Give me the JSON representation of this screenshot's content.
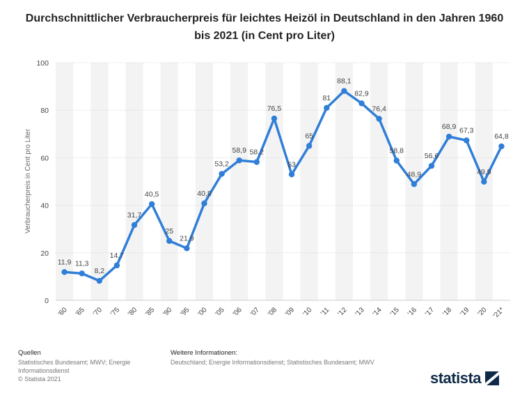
{
  "title": "Durchschnittlicher Verbraucherpreis für leichtes Heizöl in Deutschland in den Jahren 1960 bis 2021 (in Cent pro Liter)",
  "chart_data": {
    "type": "line",
    "title": "Durchschnittlicher Verbraucherpreis für leichtes Heizöl in Deutschland in den Jahren 1960 bis 2021 (in Cent pro Liter)",
    "xlabel": "",
    "ylabel": "Verbraucherpreis in Cent pro Liter",
    "categories": [
      "'60",
      "'65",
      "'70",
      "'75",
      "'80",
      "'85",
      "'90",
      "'95",
      "'00",
      "'05",
      "'06",
      "'07",
      "'08",
      "'09",
      "'10",
      "'11",
      "'12",
      "'13",
      "'14",
      "'15",
      "'16",
      "'17",
      "'18",
      "'19",
      "'20",
      "'21*"
    ],
    "series": [
      {
        "values": [
          11.9,
          11.3,
          8.2,
          14.7,
          31.7,
          40.5,
          25,
          21.9,
          40.8,
          53.2,
          58.9,
          58.2,
          76.5,
          53,
          65,
          81,
          88.1,
          82.9,
          76.4,
          58.8,
          48.9,
          56.6,
          68.9,
          67.3,
          49.9,
          64.8
        ],
        "labels": [
          "11,9",
          "11,3",
          "8,2",
          "14,7",
          "31,7",
          "40,5",
          "25",
          "21,9",
          "40,8",
          "53,2",
          "58,9",
          "58,2",
          "76,5",
          "53",
          "65",
          "81",
          "88,1",
          "82,9",
          "76,4",
          "58,8",
          "48,9",
          "56,6",
          "68,9",
          "67,3",
          "49,9",
          "64,8"
        ]
      }
    ],
    "ylim": [
      0,
      100
    ],
    "yticks": [
      0,
      20,
      40,
      60,
      80,
      100
    ],
    "grid": true,
    "line_color": "#2f7ed8"
  },
  "footer": {
    "sources_heading": "Quellen",
    "sources_line1": "Statistisches Bundesamt; MWV; Energie",
    "sources_line2": "Informationsdienst",
    "copyright": "© Statista 2021",
    "info_heading": "Weitere Informationen:",
    "info_text": "Deutschland; Energie Informationsdienst; Statistisches Bundesamt; MWV",
    "brand": "statista"
  }
}
